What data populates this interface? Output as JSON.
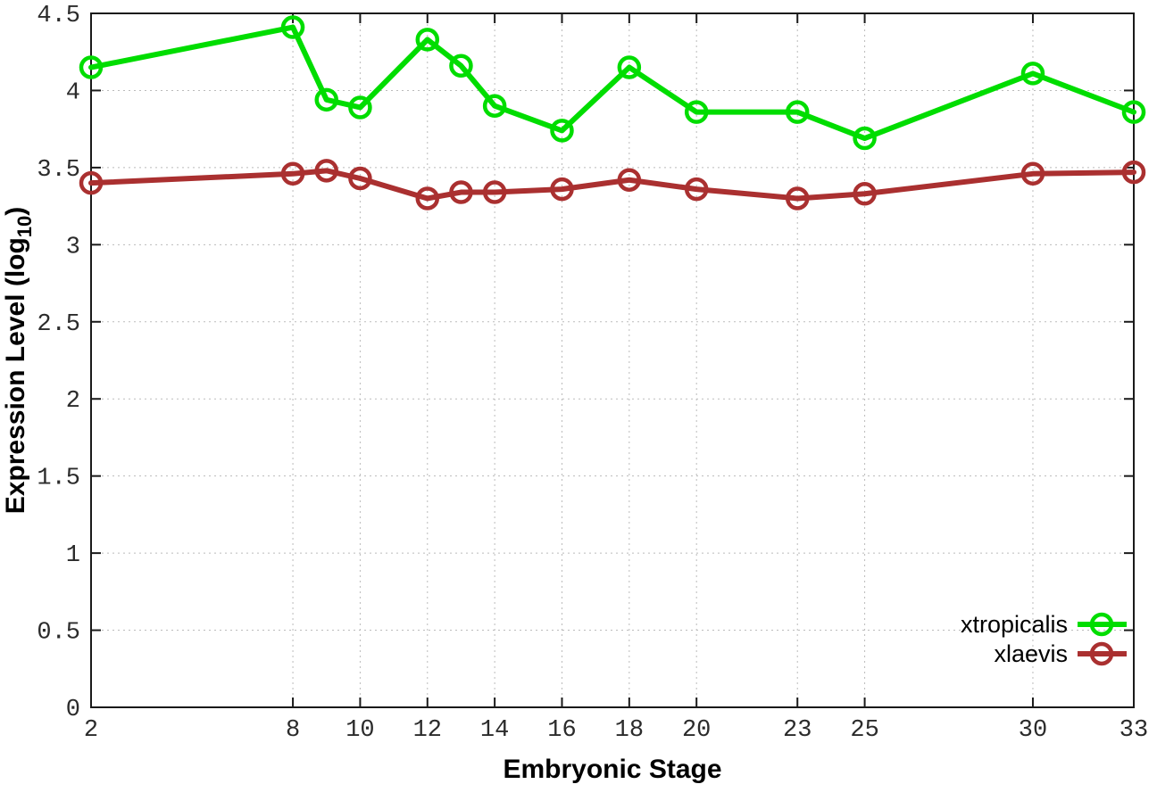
{
  "chart_data": {
    "type": "line",
    "title": "",
    "xlabel": "Embryonic Stage",
    "ylabel": "Expression Level (log10)",
    "ylabel_parts": {
      "main": "Expression Level (log",
      "sub": "10",
      "end": ")"
    },
    "xlim": [
      2,
      33
    ],
    "ylim": [
      0,
      4.5
    ],
    "x_ticks": [
      2,
      8,
      10,
      12,
      14,
      16,
      18,
      20,
      23,
      25,
      30,
      33
    ],
    "y_ticks": [
      0,
      0.5,
      1,
      1.5,
      2,
      2.5,
      3,
      3.5,
      4,
      4.5
    ],
    "grid": true,
    "legend_position": "inside bottom-right",
    "x": [
      2,
      8,
      9,
      10,
      12,
      13,
      14,
      16,
      18,
      20,
      23,
      25,
      30,
      33
    ],
    "series": [
      {
        "name": "xtropicalis",
        "color": "#00dd00",
        "marker": "open-circle",
        "values": [
          4.15,
          4.41,
          3.94,
          3.89,
          4.33,
          4.16,
          3.9,
          3.74,
          4.15,
          3.86,
          3.86,
          3.69,
          4.11,
          3.86
        ]
      },
      {
        "name": "xlaevis",
        "color": "#aa3030",
        "marker": "open-circle",
        "values": [
          3.4,
          3.46,
          3.48,
          3.43,
          3.3,
          3.34,
          3.34,
          3.36,
          3.42,
          3.36,
          3.3,
          3.33,
          3.46,
          3.47
        ]
      }
    ]
  },
  "colors": {
    "background": "#ffffff",
    "plot_border": "#1a1a1a",
    "grid": "#bbbbbb",
    "tick_label": "#2b2b2b",
    "xtropicalis": "#00dd00",
    "xlaevis": "#aa3030"
  }
}
